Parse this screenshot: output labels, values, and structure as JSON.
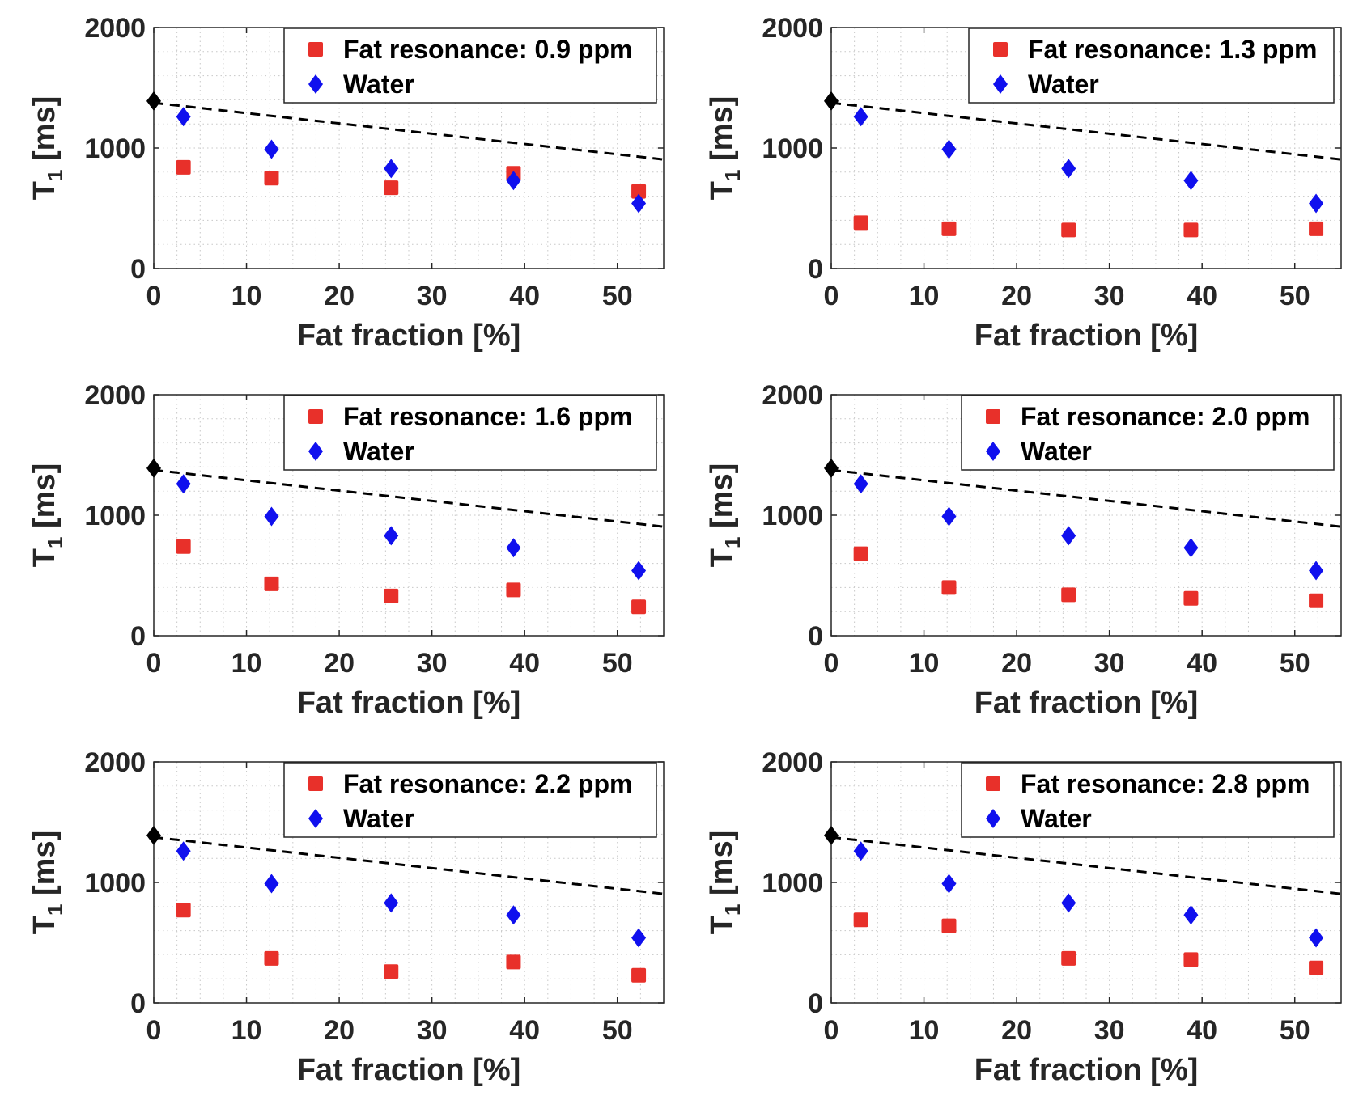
{
  "colors": {
    "fat": "#e8302a",
    "water": "#1010ee",
    "reference": "#000000",
    "grid": "#c8c8c8",
    "axis": "#262626"
  },
  "chart_data": [
    {
      "type": "scatter",
      "legend": {
        "fat_label": "Fat resonance: 0.9 ppm",
        "water_label": "Water",
        "placement": "top-right"
      },
      "xlabel": "Fat fraction [%]",
      "ylabel_main": "T",
      "ylabel_sub": "1",
      "ylabel_unit": "[ms]",
      "xlim": [
        0,
        55
      ],
      "ylim": [
        0,
        2000
      ],
      "xticks": [
        "0",
        "10",
        "20",
        "30",
        "40",
        "50"
      ],
      "yticks": [
        "0",
        "1000",
        "2000"
      ],
      "x": [
        3.2,
        12.7,
        25.6,
        38.8,
        52.3
      ],
      "fat": [
        840,
        750,
        670,
        790,
        640
      ],
      "water": [
        1260,
        990,
        830,
        730,
        540
      ],
      "reference_point": [
        0,
        1390
      ],
      "reference_line": {
        "x": [
          0,
          55
        ],
        "y": [
          1375,
          905
        ]
      }
    },
    {
      "type": "scatter",
      "legend": {
        "fat_label": "Fat resonance: 1.3 ppm",
        "water_label": "Water",
        "placement": "top-right"
      },
      "xlabel": "Fat fraction [%]",
      "ylabel_main": "T",
      "ylabel_sub": "1",
      "ylabel_unit": "[ms]",
      "xlim": [
        0,
        55
      ],
      "ylim": [
        0,
        2000
      ],
      "xticks": [
        "0",
        "10",
        "20",
        "30",
        "40",
        "50"
      ],
      "yticks": [
        "0",
        "1000",
        "2000"
      ],
      "x": [
        3.2,
        12.7,
        25.6,
        38.8,
        52.3
      ],
      "fat": [
        380,
        330,
        320,
        320,
        330
      ],
      "water": [
        1260,
        990,
        830,
        730,
        540
      ],
      "reference_point": [
        0,
        1390
      ],
      "reference_line": {
        "x": [
          0,
          55
        ],
        "y": [
          1375,
          905
        ]
      }
    },
    {
      "type": "scatter",
      "legend": {
        "fat_label": "Fat resonance: 1.6 ppm",
        "water_label": "Water",
        "placement": "top-right"
      },
      "xlabel": "Fat fraction [%]",
      "ylabel_main": "T",
      "ylabel_sub": "1",
      "ylabel_unit": "[ms]",
      "xlim": [
        0,
        55
      ],
      "ylim": [
        0,
        2000
      ],
      "xticks": [
        "0",
        "10",
        "20",
        "30",
        "40",
        "50"
      ],
      "yticks": [
        "0",
        "1000",
        "2000"
      ],
      "x": [
        3.2,
        12.7,
        25.6,
        38.8,
        52.3
      ],
      "fat": [
        740,
        430,
        330,
        380,
        240
      ],
      "water": [
        1260,
        990,
        830,
        730,
        540
      ],
      "reference_point": [
        0,
        1390
      ],
      "reference_line": {
        "x": [
          0,
          55
        ],
        "y": [
          1375,
          905
        ]
      }
    },
    {
      "type": "scatter",
      "legend": {
        "fat_label": "Fat resonance: 2.0 ppm",
        "water_label": "Water",
        "placement": "top-right"
      },
      "xlabel": "Fat fraction [%]",
      "ylabel_main": "T",
      "ylabel_sub": "1",
      "ylabel_unit": "[ms]",
      "xlim": [
        0,
        55
      ],
      "ylim": [
        0,
        2000
      ],
      "xticks": [
        "0",
        "10",
        "20",
        "30",
        "40",
        "50"
      ],
      "yticks": [
        "0",
        "1000",
        "2000"
      ],
      "x": [
        3.2,
        12.7,
        25.6,
        38.8,
        52.3
      ],
      "fat": [
        680,
        400,
        340,
        310,
        290
      ],
      "water": [
        1260,
        990,
        830,
        730,
        540
      ],
      "reference_point": [
        0,
        1390
      ],
      "reference_line": {
        "x": [
          0,
          55
        ],
        "y": [
          1375,
          905
        ]
      }
    },
    {
      "type": "scatter",
      "legend": {
        "fat_label": "Fat resonance: 2.2 ppm",
        "water_label": "Water",
        "placement": "top-right"
      },
      "xlabel": "Fat fraction [%]",
      "ylabel_main": "T",
      "ylabel_sub": "1",
      "ylabel_unit": "[ms]",
      "xlim": [
        0,
        55
      ],
      "ylim": [
        0,
        2000
      ],
      "xticks": [
        "0",
        "10",
        "20",
        "30",
        "40",
        "50"
      ],
      "yticks": [
        "0",
        "1000",
        "2000"
      ],
      "x": [
        3.2,
        12.7,
        25.6,
        38.8,
        52.3
      ],
      "fat": [
        770,
        370,
        260,
        340,
        230
      ],
      "water": [
        1260,
        990,
        830,
        730,
        540
      ],
      "reference_point": [
        0,
        1390
      ],
      "reference_line": {
        "x": [
          0,
          55
        ],
        "y": [
          1375,
          905
        ]
      }
    },
    {
      "type": "scatter",
      "legend": {
        "fat_label": "Fat resonance: 2.8 ppm",
        "water_label": "Water",
        "placement": "top-right"
      },
      "xlabel": "Fat fraction [%]",
      "ylabel_main": "T",
      "ylabel_sub": "1",
      "ylabel_unit": "[ms]",
      "xlim": [
        0,
        55
      ],
      "ylim": [
        0,
        2000
      ],
      "xticks": [
        "0",
        "10",
        "20",
        "30",
        "40",
        "50"
      ],
      "yticks": [
        "0",
        "1000",
        "2000"
      ],
      "x": [
        3.2,
        12.7,
        25.6,
        38.8,
        52.3
      ],
      "fat": [
        690,
        640,
        370,
        360,
        290
      ],
      "water": [
        1260,
        990,
        830,
        730,
        540
      ],
      "reference_point": [
        0,
        1390
      ],
      "reference_line": {
        "x": [
          0,
          55
        ],
        "y": [
          1375,
          905
        ]
      }
    }
  ]
}
